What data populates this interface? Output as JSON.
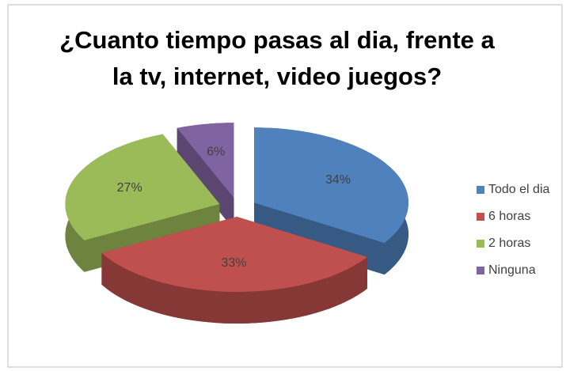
{
  "chart_data": {
    "type": "pie3d",
    "title": "¿Cuanto tiempo pasas al dia, frente a la tv, internet, video juegos?",
    "categories": [
      "Todo el dia",
      "6 horas",
      "2 horas",
      "Ninguna"
    ],
    "values": [
      34,
      33,
      27,
      6
    ],
    "value_labels": [
      "34%",
      "33%",
      "27%",
      "6%"
    ],
    "colors": [
      "#4f81bd",
      "#c0504d",
      "#9bbb59",
      "#8064a2"
    ],
    "legend": "right"
  }
}
